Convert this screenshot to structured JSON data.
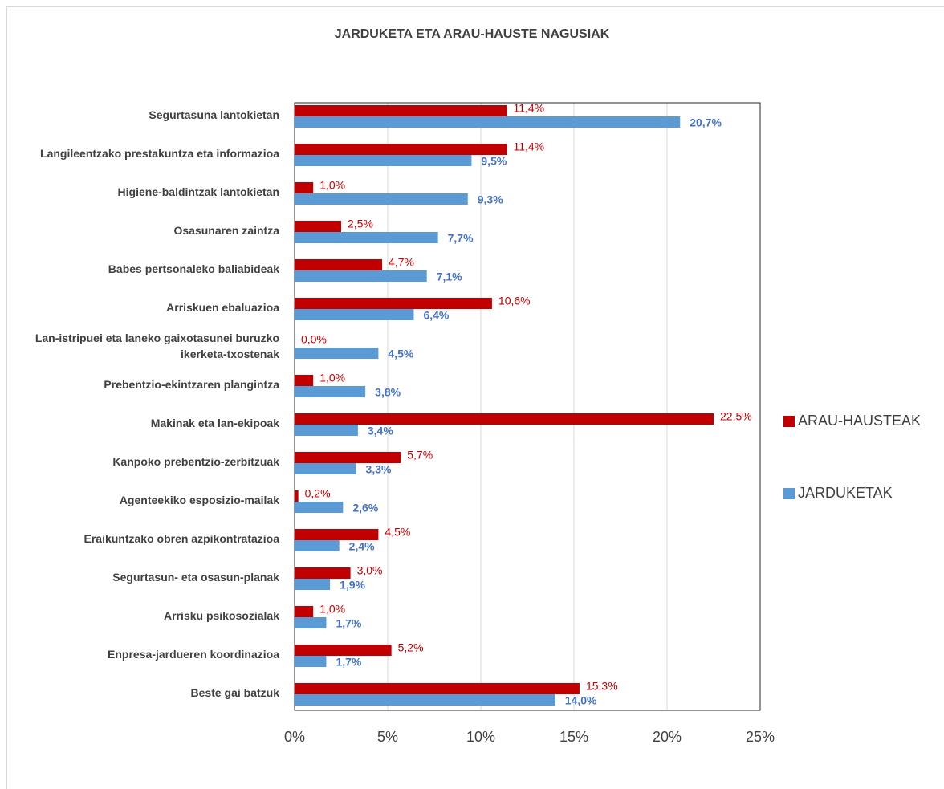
{
  "chart_data": {
    "type": "bar",
    "orientation": "horizontal",
    "title": "JARDUKETA ETA ARAU-HAUSTE NAGUSIAK",
    "categories": [
      "Segurtasuna lantokietan",
      "Langileentzako prestakuntza eta informazioa",
      "Higiene-baldintzak lantokietan",
      "Osasunaren zaintza",
      "Babes pertsonaleko baliabideak",
      "Arriskuen ebaluazioa",
      "Lan-istripuei eta laneko gaixotasunei buruzko ikerketa-txostenak",
      "Prebentzio-ekintzaren plangintza",
      "Makinak eta lan-ekipoak",
      "Kanpoko prebentzio-zerbitzuak",
      "Agenteekiko esposizio-mailak",
      "Eraikuntzako obren azpikontratazioa",
      "Segurtasun- eta osasun-planak",
      "Arrisku psikosozialak",
      "Enpresa-jardueren koordinazioa",
      "Beste gai batzuk"
    ],
    "series": [
      {
        "name": "ARAU-HAUSTEAK",
        "color": "#c00000",
        "values": [
          11.4,
          11.4,
          1.0,
          2.5,
          4.7,
          10.6,
          0.0,
          1.0,
          22.5,
          5.7,
          0.2,
          4.5,
          3.0,
          1.0,
          5.2,
          15.3
        ],
        "value_labels": [
          "11,4%",
          "11,4%",
          "1,0%",
          "2,5%",
          "4,7%",
          "10,6%",
          "0,0%",
          "1,0%",
          "22,5%",
          "5,7%",
          "0,2%",
          "4,5%",
          "3,0%",
          "1,0%",
          "5,2%",
          "15,3%"
        ]
      },
      {
        "name": "JARDUKETAK",
        "color": "#5b9bd5",
        "values": [
          20.7,
          9.5,
          9.3,
          7.7,
          7.1,
          6.4,
          4.5,
          3.8,
          3.4,
          3.3,
          2.6,
          2.4,
          1.9,
          1.7,
          1.7,
          14.0
        ],
        "value_labels": [
          "20,7%",
          "9,5%",
          "9,3%",
          "7,7%",
          "7,1%",
          "6,4%",
          "4,5%",
          "3,8%",
          "3,4%",
          "3,3%",
          "2,6%",
          "2,4%",
          "1,9%",
          "1,7%",
          "1,7%",
          "14,0%"
        ]
      }
    ],
    "xlim": [
      0,
      25
    ],
    "xticks": [
      {
        "value": 0,
        "label": "0%"
      },
      {
        "value": 5,
        "label": "5%"
      },
      {
        "value": 10,
        "label": "10%"
      },
      {
        "value": 15,
        "label": "15%"
      },
      {
        "value": 20,
        "label": "20%"
      },
      {
        "value": 25,
        "label": "25%"
      }
    ],
    "grid": true,
    "legend": "right"
  }
}
